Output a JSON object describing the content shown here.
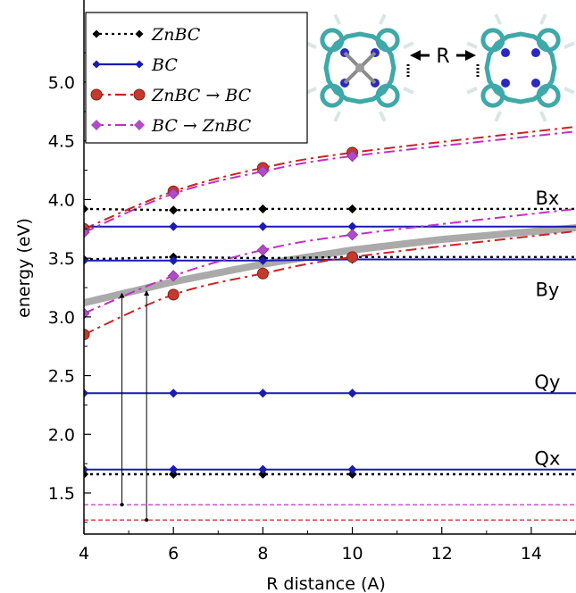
{
  "chart_data": {
    "type": "line",
    "title": "",
    "xlabel": "R distance (A)",
    "ylabel": "energy (eV)",
    "xlim": [
      4,
      15
    ],
    "ylim": [
      1.15,
      5.7
    ],
    "xticks": [
      4,
      6,
      8,
      10,
      12,
      14
    ],
    "yticks": [
      1.5,
      2.0,
      2.5,
      3.0,
      3.5,
      4.0,
      4.5,
      5.0
    ],
    "grid": false,
    "legend_position": "top-left",
    "series": [
      {
        "name": "ZnBC",
        "color": "#000000",
        "style": "dotted",
        "marker": "diamond",
        "x": [
          4,
          6,
          8,
          10,
          15
        ],
        "y": [
          3.92,
          3.91,
          3.92,
          3.92,
          3.92
        ]
      },
      {
        "name": "ZnBC",
        "color": "#000000",
        "style": "dotted",
        "marker": "diamond",
        "x": [
          4,
          6,
          8,
          10,
          15
        ],
        "y": [
          3.49,
          3.51,
          3.5,
          3.51,
          3.51
        ]
      },
      {
        "name": "ZnBC",
        "color": "#000000",
        "style": "dotted",
        "marker": "diamond",
        "x": [
          4,
          6,
          8,
          10,
          15
        ],
        "y": [
          1.66,
          1.66,
          1.66,
          1.66,
          1.66
        ]
      },
      {
        "name": "BC",
        "color": "#1a1ab5",
        "style": "solid",
        "marker": "diamond",
        "x": [
          4,
          6,
          8,
          10,
          15
        ],
        "y": [
          3.77,
          3.77,
          3.77,
          3.77,
          3.77
        ]
      },
      {
        "name": "BC",
        "color": "#1a1ab5",
        "style": "solid",
        "marker": "diamond",
        "x": [
          4,
          6,
          8,
          10,
          15
        ],
        "y": [
          3.48,
          3.48,
          3.48,
          3.49,
          3.49
        ]
      },
      {
        "name": "BC",
        "color": "#1a1ab5",
        "style": "solid",
        "marker": "diamond",
        "x": [
          4,
          6,
          8,
          10,
          15
        ],
        "y": [
          2.35,
          2.35,
          2.35,
          2.35,
          2.35
        ]
      },
      {
        "name": "BC",
        "color": "#1a1ab5",
        "style": "solid",
        "marker": "diamond",
        "x": [
          4,
          6,
          8,
          10,
          15
        ],
        "y": [
          1.7,
          1.7,
          1.7,
          1.7,
          1.7
        ]
      },
      {
        "name": "ZnBC → BC",
        "color": "#cc2222",
        "style": "dashdot",
        "marker": "circle",
        "x": [
          4,
          6,
          8,
          10,
          15
        ],
        "y": [
          3.75,
          4.07,
          4.27,
          4.4,
          4.62
        ]
      },
      {
        "name": "ZnBC → BC",
        "color": "#cc2222",
        "style": "dashdot",
        "marker": "circle",
        "x": [
          4,
          6,
          8,
          10,
          15
        ],
        "y": [
          2.85,
          3.19,
          3.37,
          3.51,
          3.73
        ]
      },
      {
        "name": "BC → ZnBC",
        "color": "#c030c0",
        "style": "dashdot",
        "marker": "diamond",
        "x": [
          4,
          6,
          8,
          10,
          15
        ],
        "y": [
          3.72,
          4.05,
          4.24,
          4.37,
          4.58
        ]
      },
      {
        "name": "BC → ZnBC",
        "color": "#c030c0",
        "style": "dashdot",
        "marker": "diamond",
        "x": [
          4,
          6,
          8,
          10,
          15
        ],
        "y": [
          3.03,
          3.35,
          3.57,
          3.7,
          3.92
        ]
      }
    ],
    "gray_curve": {
      "x": [
        4,
        6,
        8,
        10,
        12,
        15
      ],
      "y": [
        3.12,
        3.3,
        3.45,
        3.57,
        3.66,
        3.76
      ]
    },
    "baselines": [
      {
        "color": "#c030c0",
        "y": 1.4
      },
      {
        "color": "#cc2222",
        "y": 1.27
      }
    ],
    "arrows": [
      {
        "x": 4.85,
        "y_from": 1.4,
        "y_to": 3.23
      },
      {
        "x": 5.4,
        "y_from": 1.27,
        "y_to": 3.25
      }
    ],
    "state_labels": [
      {
        "text": "Bx",
        "x": 14.0,
        "y": 4.02
      },
      {
        "text": "By",
        "x": 14.0,
        "y": 3.24
      },
      {
        "text": "Qy",
        "x": 14.0,
        "y": 2.45
      },
      {
        "text": "Qx",
        "x": 14.0,
        "y": 1.8
      }
    ],
    "legend": [
      {
        "label": "ZnBC",
        "color": "#000000",
        "style": "dotted",
        "marker": "diamond"
      },
      {
        "label": "BC",
        "color": "#1a1ab5",
        "style": "solid",
        "marker": "diamond"
      },
      {
        "label": "ZnBC → BC",
        "color": "#cc2222",
        "style": "dashdot",
        "marker": "circle"
      },
      {
        "label": "BC → ZnBC",
        "color": "#c030c0",
        "style": "dashdot",
        "marker": "diamond"
      }
    ],
    "inset_label": "R"
  }
}
